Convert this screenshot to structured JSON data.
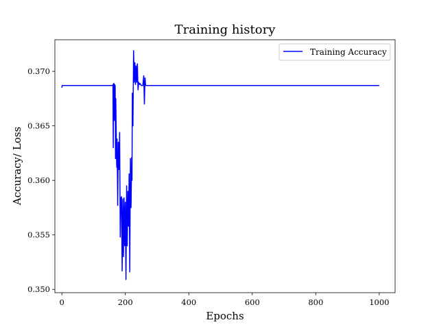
{
  "chart_data": {
    "type": "line",
    "title": "Training history",
    "xlabel": "Epochs",
    "ylabel": "Accuracy/ Loss",
    "xlim": [
      -22,
      1050
    ],
    "ylim": [
      0.3497,
      0.3729
    ],
    "xticks": [
      0,
      200,
      400,
      600,
      800,
      1000
    ],
    "yticks": [
      0.35,
      0.355,
      0.36,
      0.365,
      0.37
    ],
    "xtick_labels": [
      "0",
      "200",
      "400",
      "600",
      "800",
      "1000"
    ],
    "ytick_labels": [
      "0.350",
      "0.355",
      "0.360",
      "0.365",
      "0.370"
    ],
    "grid": false,
    "legend_position": "top-right",
    "series": [
      {
        "name": "Training Accuracy",
        "color": "#0000ff",
        "x": [
          0,
          1,
          2,
          160,
          161,
          162,
          163,
          164,
          165,
          166,
          167,
          168,
          169,
          170,
          172,
          173,
          174,
          176,
          178,
          180,
          182,
          184,
          186,
          188,
          190,
          192,
          194,
          196,
          198,
          200,
          202,
          204,
          206,
          208,
          210,
          212,
          214,
          216,
          218,
          220,
          221,
          222,
          224,
          226,
          228,
          230,
          232,
          234,
          236,
          238,
          240,
          242,
          244,
          246,
          248,
          250,
          255,
          258,
          260,
          262,
          264,
          270,
          1000
        ],
        "values": [
          0.3685,
          0.3687,
          0.3687,
          0.3687,
          0.3688,
          0.363,
          0.3688,
          0.3689,
          0.3655,
          0.3688,
          0.366,
          0.3687,
          0.362,
          0.3675,
          0.3625,
          0.3612,
          0.3638,
          0.3577,
          0.3635,
          0.361,
          0.3644,
          0.3548,
          0.3584,
          0.3585,
          0.3517,
          0.3583,
          0.353,
          0.3584,
          0.354,
          0.358,
          0.3509,
          0.3595,
          0.354,
          0.359,
          0.3558,
          0.3606,
          0.3516,
          0.362,
          0.3575,
          0.3621,
          0.36,
          0.368,
          0.365,
          0.3719,
          0.369,
          0.3708,
          0.3688,
          0.3705,
          0.369,
          0.3707,
          0.3683,
          0.369,
          0.3688,
          0.3689,
          0.3688,
          0.3687,
          0.3687,
          0.3696,
          0.367,
          0.3694,
          0.3687,
          0.3687,
          0.3687
        ]
      }
    ]
  }
}
